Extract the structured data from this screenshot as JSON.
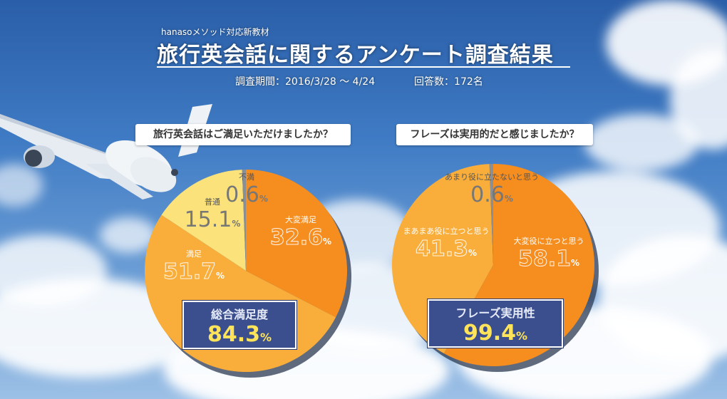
{
  "header": {
    "subtitle": "hanasoメソッド対応新教材",
    "title": "旅行英会話に関するアンケート調査結果",
    "period_label": "調査期間：2016/3/28 ～ 4/24",
    "responses_label": "回答数：172名"
  },
  "chart_data": [
    {
      "type": "pie",
      "title": "旅行英会話はご満足いただけましたか？",
      "unit": "%",
      "slices": [
        {
          "label": "大変満足",
          "value": 32.6,
          "color": "#f58d1f"
        },
        {
          "label": "満足",
          "value": 51.7,
          "color": "#f9ad3a"
        },
        {
          "label": "普通",
          "value": 15.1,
          "color": "#fbe27a"
        },
        {
          "label": "不満",
          "value": 0.6,
          "color": "#8a8f96"
        }
      ],
      "summary": {
        "label": "総合満足度",
        "value": "84.3",
        "unit": "%"
      }
    },
    {
      "type": "pie",
      "title": "フレーズは実用的だと感じましたか？",
      "unit": "%",
      "slices": [
        {
          "label": "大変役に立つと思う",
          "value": 58.1,
          "color": "#f58d1f"
        },
        {
          "label": "まあまあ役に立つと思う",
          "value": 41.3,
          "color": "#f9ad3a"
        },
        {
          "label": "あまり役に立たないと思う",
          "value": 0.6,
          "color": "#8a8f96"
        }
      ],
      "summary": {
        "label": "フレーズ実用性",
        "value": "99.4",
        "unit": "%"
      }
    }
  ]
}
